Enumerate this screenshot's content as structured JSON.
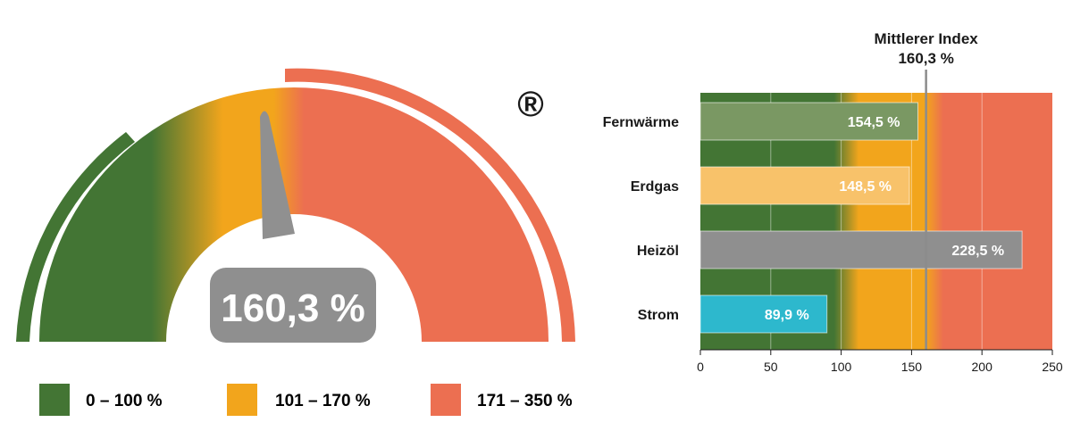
{
  "gauge": {
    "value": 160.3,
    "value_label": "160,3 %",
    "max": 350,
    "registered_mark": "®",
    "ranges": [
      {
        "label": "0 – 100 %",
        "from": 0,
        "to": 100,
        "color": "#437534"
      },
      {
        "label": "101 – 170 %",
        "from": 101,
        "to": 170,
        "color": "#f2a51c"
      },
      {
        "label": "171 – 350 %",
        "from": 171,
        "to": 350,
        "color": "#ec6f51"
      }
    ]
  },
  "chart_data": {
    "type": "bar",
    "orientation": "horizontal",
    "categories": [
      "Fernwärme",
      "Erdgas",
      "Heizöl",
      "Strom"
    ],
    "values": [
      154.5,
      148.5,
      228.5,
      89.9
    ],
    "data_labels": [
      "154,5 %",
      "148,5 %",
      "228,5 %",
      "89,9 %"
    ],
    "bar_colors": [
      "#7a9863",
      "#f8c26a",
      "#8f8f8f",
      "#2db8cd"
    ],
    "xlim": [
      0,
      250
    ],
    "xticks": [
      "0",
      "50",
      "100",
      "150",
      "200",
      "250"
    ],
    "grid": true,
    "background_bands": [
      {
        "from": 0,
        "to": 100,
        "color": "#437534"
      },
      {
        "from": 100,
        "to": 170,
        "color": "#f2a51c"
      },
      {
        "from": 170,
        "to": 250,
        "color": "#ec6f51"
      }
    ],
    "reference_line": {
      "value": 160.3,
      "label": "Mittlerer Index",
      "value_label": "160,3 %",
      "color": "#8c8c8c"
    }
  }
}
